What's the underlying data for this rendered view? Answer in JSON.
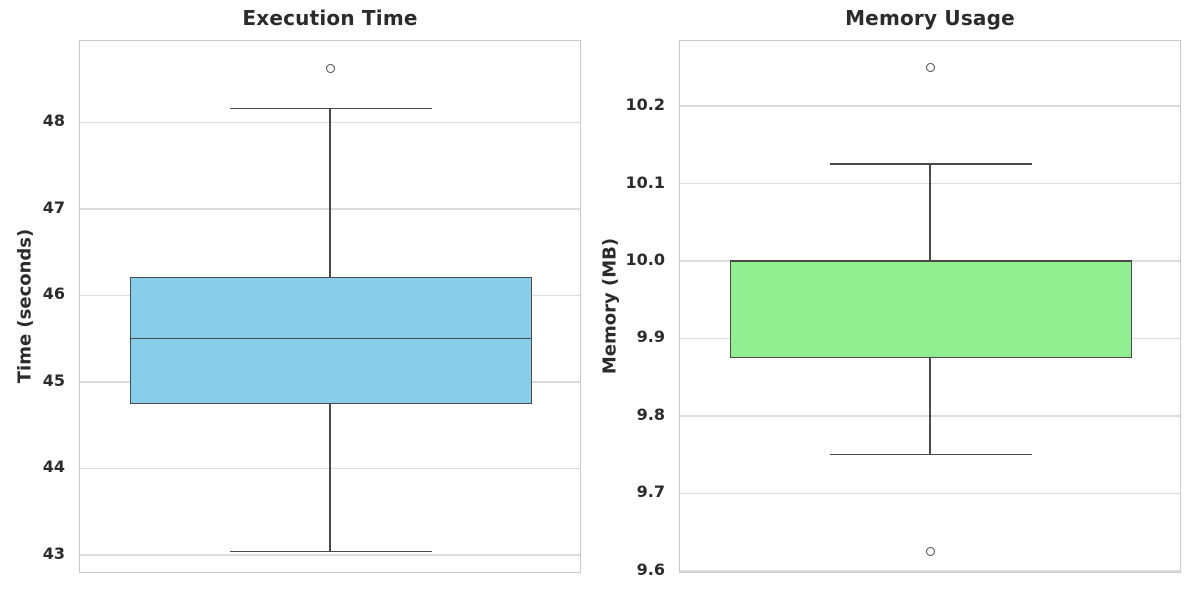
{
  "figure": {
    "background": "#ffffff",
    "text_color": "#2b2b2b",
    "grid_color": "#dcdcdc",
    "spine_color": "#c9c9c9",
    "box_edge_color": "#4a4a4a"
  },
  "chart_data": [
    {
      "type": "boxplot",
      "title": "Execution Time",
      "ylabel": "Time (seconds)",
      "box_fill": "#87CEEB",
      "grid": true,
      "legend": false,
      "ylim": [
        42.78,
        48.94
      ],
      "yticks": [
        {
          "value": 43,
          "label": "43"
        },
        {
          "value": 44,
          "label": "44"
        },
        {
          "value": 45,
          "label": "45"
        },
        {
          "value": 46,
          "label": "46"
        },
        {
          "value": 47,
          "label": "47"
        },
        {
          "value": 48,
          "label": "48"
        }
      ],
      "series": [
        {
          "name": "execution_time",
          "whisker_low": 43.04,
          "q1": 44.75,
          "median": 45.5,
          "q3": 46.21,
          "whisker_high": 48.16,
          "outliers": [
            48.62
          ]
        }
      ]
    },
    {
      "type": "boxplot",
      "title": "Memory Usage",
      "ylabel": "Memory (MB)",
      "box_fill": "#90EE90",
      "grid": true,
      "legend": false,
      "ylim": [
        9.596,
        10.284
      ],
      "yticks": [
        {
          "value": 9.6,
          "label": "9.6"
        },
        {
          "value": 9.7,
          "label": "9.7"
        },
        {
          "value": 9.8,
          "label": "9.8"
        },
        {
          "value": 9.9,
          "label": "9.9"
        },
        {
          "value": 10.0,
          "label": "10.0"
        },
        {
          "value": 10.1,
          "label": "10.1"
        },
        {
          "value": 10.2,
          "label": "10.2"
        }
      ],
      "series": [
        {
          "name": "memory_usage",
          "whisker_low": 9.75,
          "q1": 9.875,
          "median": 10.0,
          "q3": 10.0,
          "whisker_high": 10.125,
          "outliers": [
            9.625,
            10.25
          ]
        }
      ]
    }
  ]
}
